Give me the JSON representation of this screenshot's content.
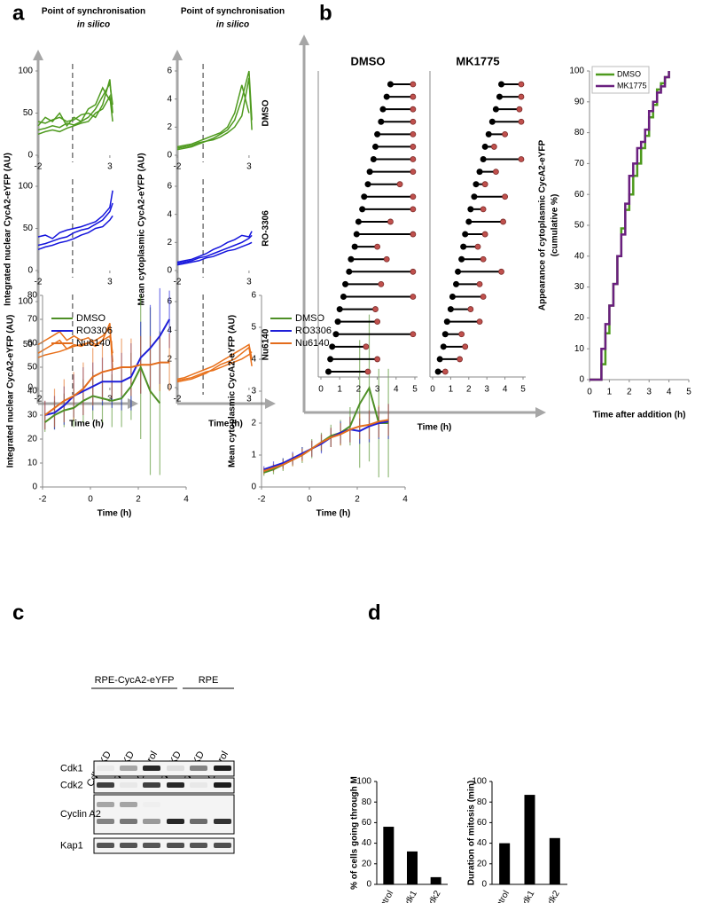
{
  "panel_labels": [
    "a",
    "b",
    "c",
    "d"
  ],
  "chart_data": [
    {
      "type": "small_multiples",
      "title": "Point of synchronisation",
      "subtitle": "in silico",
      "y_label": "Integrated nuclear CycA2-eYFP (AU)",
      "x_label": "Time (h)",
      "xlim": [
        -2,
        3.5
      ],
      "xticks": [
        -2,
        3
      ],
      "ylim": [
        0,
        100
      ],
      "yticks": [
        0,
        50,
        100
      ],
      "sync_x": 0.4,
      "panels": [
        {
          "color": "#4e9a1e",
          "x": [
            -2,
            -1.5,
            -1,
            -0.5,
            0,
            0.5,
            1,
            1.5,
            2,
            2.5,
            3,
            3.2
          ],
          "series": [
            {
              "values": [
                30,
                32,
                35,
                33,
                38,
                36,
                40,
                45,
                55,
                70,
                85,
                60
              ]
            },
            {
              "values": [
                40,
                38,
                42,
                45,
                40,
                42,
                48,
                50,
                45,
                60,
                90,
                50
              ]
            },
            {
              "values": [
                25,
                28,
                30,
                28,
                32,
                35,
                38,
                40,
                50,
                55,
                70,
                40
              ]
            },
            {
              "values": [
                35,
                45,
                40,
                50,
                35,
                45,
                40,
                55,
                60,
                80,
                65,
                null
              ]
            }
          ]
        },
        {
          "color": "#1414dc",
          "x": [
            -2,
            -1.5,
            -1,
            -0.5,
            0,
            0.5,
            1,
            1.5,
            2,
            2.5,
            3,
            3.2
          ],
          "series": [
            {
              "values": [
                30,
                32,
                35,
                38,
                40,
                45,
                48,
                50,
                55,
                60,
                70,
                80
              ]
            },
            {
              "values": [
                40,
                42,
                38,
                45,
                48,
                50,
                52,
                55,
                58,
                65,
                75,
                95
              ]
            },
            {
              "values": [
                25,
                28,
                30,
                33,
                35,
                38,
                42,
                45,
                50,
                52,
                60,
                65
              ]
            }
          ]
        },
        {
          "color": "#e8701a",
          "x": [
            -2,
            -1.5,
            -1,
            -0.5,
            0,
            0.5,
            1,
            1.5,
            2,
            2.5,
            3,
            3.2
          ],
          "series": [
            {
              "values": [
                40,
                45,
                50,
                55,
                45,
                50,
                48,
                52,
                55,
                60,
                70,
                30
              ]
            },
            {
              "values": [
                50,
                55,
                60,
                65,
                55,
                60,
                55,
                58,
                50,
                55,
                75,
                20
              ]
            },
            {
              "values": [
                35,
                38,
                40,
                42,
                45,
                48,
                50,
                52,
                48,
                55,
                60,
                40
              ]
            }
          ]
        }
      ]
    },
    {
      "type": "small_multiples",
      "title": "Point of synchronisation",
      "subtitle": "in silico",
      "y_label": "Mean cytoplasmic CycA2-eYFP (AU)",
      "x_label": "Time (h)",
      "xlim": [
        -2,
        3.5
      ],
      "xticks": [
        -2,
        3
      ],
      "ylim": [
        0,
        6
      ],
      "yticks": [
        0,
        2,
        4,
        6
      ],
      "sync_x": -0.2,
      "panels": [
        {
          "label": "DMSO",
          "color": "#4e9a1e",
          "x": [
            -2,
            -1.5,
            -1,
            -0.5,
            0,
            0.5,
            1,
            1.5,
            2,
            2.5,
            3,
            3.2
          ],
          "series": [
            {
              "values": [
                0.5,
                0.6,
                0.7,
                0.9,
                1.0,
                1.2,
                1.5,
                1.8,
                2.5,
                4.0,
                6.0,
                2.5
              ]
            },
            {
              "values": [
                0.6,
                0.7,
                0.8,
                1.0,
                1.2,
                1.4,
                1.6,
                2.0,
                3.0,
                5.0,
                3.0,
                null
              ]
            },
            {
              "values": [
                0.4,
                0.5,
                0.6,
                0.8,
                1.0,
                1.1,
                1.3,
                1.6,
                2.0,
                2.8,
                5.5,
                1.8
              ]
            }
          ]
        },
        {
          "label": "RO-3306",
          "color": "#1414dc",
          "x": [
            -2,
            -1.5,
            -1,
            -0.5,
            0,
            0.5,
            1,
            1.5,
            2,
            2.5,
            3,
            3.2
          ],
          "series": [
            {
              "values": [
                0.5,
                0.6,
                0.7,
                0.9,
                1.0,
                1.2,
                1.4,
                1.6,
                1.8,
                2.0,
                2.3,
                2.5
              ]
            },
            {
              "values": [
                0.6,
                0.7,
                0.8,
                1.0,
                1.2,
                1.5,
                1.7,
                2.0,
                2.2,
                2.5,
                2.4,
                2.8
              ]
            },
            {
              "values": [
                0.4,
                0.5,
                0.6,
                0.7,
                0.9,
                1.0,
                1.2,
                1.4,
                1.5,
                1.7,
                1.9,
                2.0
              ]
            }
          ]
        },
        {
          "label": "Nu6140",
          "color": "#e8701a",
          "x": [
            -2,
            -1.5,
            -1,
            -0.5,
            0,
            0.5,
            1,
            1.5,
            2,
            2.5,
            3,
            3.2
          ],
          "series": [
            {
              "values": [
                0.4,
                0.5,
                0.6,
                0.8,
                1.0,
                1.3,
                1.6,
                1.8,
                2.0,
                2.4,
                2.8,
                1.5
              ]
            },
            {
              "values": [
                0.6,
                0.7,
                0.9,
                1.1,
                1.3,
                1.5,
                1.8,
                2.1,
                2.4,
                2.7,
                3.0,
                2.0
              ]
            },
            {
              "values": [
                0.5,
                0.6,
                0.7,
                0.9,
                1.1,
                1.2,
                1.4,
                1.6,
                1.8,
                2.0,
                2.3,
                2.5
              ]
            }
          ]
        }
      ]
    },
    {
      "type": "line",
      "y_label": "Integrated nuclear CycA2-eYFP (AU)",
      "x_label": "Time (h)",
      "xlim": [
        -2,
        4
      ],
      "xticks": [
        -2,
        0,
        2,
        4
      ],
      "ylim": [
        0,
        80
      ],
      "yticks": [
        0,
        10,
        20,
        30,
        40,
        50,
        60,
        70,
        80
      ],
      "x": [
        -1.9,
        -1.5,
        -1.1,
        -0.7,
        -0.3,
        0.1,
        0.5,
        0.9,
        1.3,
        1.7,
        2.1,
        2.5,
        2.9,
        3.3
      ],
      "series": [
        {
          "name": "DMSO",
          "color": "#4e8f26",
          "values": [
            27,
            30,
            32,
            33,
            36,
            38,
            37,
            36,
            37,
            42,
            50,
            40,
            35,
            null
          ],
          "errors": [
            4,
            6,
            7,
            8,
            9,
            10,
            10,
            11,
            12,
            14,
            30,
            35,
            30,
            null
          ]
        },
        {
          "name": "RO3306",
          "color": "#1f1fd8",
          "values": [
            30,
            31,
            34,
            38,
            40,
            42,
            44,
            44,
            44,
            46,
            54,
            58,
            63,
            70
          ],
          "errors": [
            6,
            7,
            8,
            9,
            10,
            10,
            10,
            11,
            12,
            14,
            15,
            18,
            20,
            12
          ]
        },
        {
          "name": "Nu6140",
          "color": "#e36c1c",
          "values": [
            30,
            33,
            36,
            38,
            41,
            46,
            48,
            49,
            50,
            50,
            51,
            51,
            52,
            52
          ],
          "errors": [
            6,
            8,
            9,
            10,
            11,
            12,
            12,
            12,
            12,
            12,
            12,
            12,
            12,
            12
          ]
        }
      ]
    },
    {
      "type": "line",
      "y_label": "Mean cytoplasmic CycA2-eYFP (AU)",
      "x_label": "Time (h)",
      "xlim": [
        -2,
        4
      ],
      "xticks": [
        -2,
        0,
        2,
        4
      ],
      "ylim": [
        0,
        6
      ],
      "yticks": [
        0,
        1,
        2,
        3,
        4,
        5,
        6
      ],
      "x": [
        -1.9,
        -1.5,
        -1.1,
        -0.7,
        -0.3,
        0.1,
        0.5,
        0.9,
        1.3,
        1.7,
        2.1,
        2.5,
        2.9,
        3.3
      ],
      "series": [
        {
          "name": "DMSO",
          "color": "#4e8f26",
          "values": [
            0.45,
            0.55,
            0.7,
            0.85,
            1.0,
            1.2,
            1.4,
            1.6,
            1.7,
            1.9,
            2.6,
            3.1,
            2.0,
            2.0
          ],
          "errors": [
            0.1,
            0.15,
            0.2,
            0.2,
            0.25,
            0.3,
            0.3,
            0.35,
            0.4,
            0.6,
            2.0,
            2.3,
            1.7,
            1.7
          ]
        },
        {
          "name": "RO3306",
          "color": "#1f1fd8",
          "values": [
            0.55,
            0.65,
            0.75,
            0.9,
            1.05,
            1.2,
            1.35,
            1.55,
            1.7,
            1.8,
            1.75,
            1.9,
            2.0,
            2.05
          ],
          "errors": [
            0.1,
            0.15,
            0.15,
            0.2,
            0.2,
            0.25,
            0.3,
            0.3,
            0.35,
            0.4,
            0.4,
            0.5,
            0.5,
            0.55
          ]
        },
        {
          "name": "Nu6140",
          "color": "#e36c1c",
          "values": [
            0.5,
            0.6,
            0.7,
            0.85,
            1.0,
            1.2,
            1.4,
            1.55,
            1.65,
            1.8,
            1.9,
            1.95,
            2.05,
            2.1
          ],
          "errors": [
            0.1,
            0.12,
            0.15,
            0.2,
            0.2,
            0.25,
            0.25,
            0.3,
            0.35,
            0.4,
            0.4,
            0.45,
            0.5,
            0.5
          ]
        }
      ]
    },
    {
      "type": "lollipop",
      "title": "DMSO",
      "x_label": "Time (h)",
      "xlim": [
        0,
        5
      ],
      "xticks": [
        0,
        1,
        2,
        3,
        4,
        5
      ],
      "starts": [
        0.4,
        0.5,
        0.6,
        0.8,
        0.9,
        1.0,
        1.2,
        1.3,
        1.5,
        1.6,
        1.8,
        1.9,
        2.0,
        2.2,
        2.3,
        2.5,
        2.6,
        2.8,
        2.9,
        3.0,
        3.2,
        3.3,
        3.5,
        3.7
      ],
      "ends": [
        2.5,
        3.0,
        2.4,
        4.9,
        3.0,
        2.9,
        4.9,
        3.2,
        4.9,
        3.5,
        3.0,
        4.9,
        3.7,
        4.9,
        4.9,
        4.2,
        4.9,
        4.9,
        4.9,
        4.9,
        4.9,
        4.9,
        4.9,
        4.9
      ]
    },
    {
      "type": "lollipop",
      "title": "MK1775",
      "xlim": [
        0,
        5
      ],
      "xticks": [
        0,
        1,
        2,
        3,
        4,
        5
      ],
      "starts": [
        0.3,
        0.4,
        0.6,
        0.7,
        0.8,
        1.0,
        1.1,
        1.3,
        1.4,
        1.6,
        1.7,
        1.8,
        2.0,
        2.1,
        2.3,
        2.4,
        2.6,
        2.8,
        2.9,
        3.1,
        3.3,
        3.5,
        3.7,
        3.8
      ],
      "ends": [
        0.7,
        1.5,
        1.8,
        1.6,
        2.6,
        2.1,
        2.8,
        2.6,
        3.8,
        2.8,
        2.5,
        2.9,
        3.9,
        2.8,
        4.0,
        2.9,
        3.5,
        4.9,
        3.4,
        4.0,
        4.9,
        4.8,
        4.9,
        4.9
      ]
    },
    {
      "type": "step",
      "y_label": [
        "Appearance of cytoplasmic CycA2-eYFP",
        "(cumulative %)"
      ],
      "x_label": "Time after addition (h)",
      "xlim": [
        0,
        5
      ],
      "xticks": [
        0,
        1,
        2,
        3,
        4,
        5
      ],
      "ylim": [
        0,
        100
      ],
      "yticks": [
        0,
        10,
        20,
        30,
        40,
        50,
        60,
        70,
        80,
        90,
        100
      ],
      "x": [
        0,
        0.6,
        0.8,
        1.0,
        1.2,
        1.4,
        1.6,
        1.8,
        2.0,
        2.2,
        2.4,
        2.6,
        2.8,
        3.0,
        3.2,
        3.4,
        3.6,
        3.8,
        4.0
      ],
      "series": [
        {
          "name": "DMSO",
          "color": "#4e9a1e",
          "values": [
            0,
            5,
            15,
            24,
            31,
            40,
            49,
            55,
            60,
            66,
            70,
            75,
            79,
            85,
            89,
            94,
            96,
            98,
            100
          ]
        },
        {
          "name": "MK1775",
          "color": "#6a1f7f",
          "values": [
            0,
            10,
            18,
            24,
            31,
            40,
            47,
            57,
            66,
            70,
            75,
            77,
            81,
            87,
            90,
            93,
            95,
            98,
            100
          ]
        }
      ]
    },
    {
      "type": "bar",
      "y_label": "% of cells going through M",
      "categories": [
        "Control",
        "Cdk1",
        "Cdk2"
      ],
      "values": [
        56,
        32,
        7
      ],
      "color": "#000000",
      "ylim": [
        0,
        100
      ],
      "yticks": [
        0,
        20,
        40,
        60,
        80,
        100
      ]
    },
    {
      "type": "bar",
      "y_label": "Duration of mitosis (min)",
      "categories": [
        "Control",
        "Cdk1",
        "Cdk2"
      ],
      "values": [
        40,
        87,
        45
      ],
      "color": "#000000",
      "ylim": [
        0,
        100
      ],
      "yticks": [
        0,
        20,
        40,
        60,
        80,
        100
      ]
    }
  ],
  "blot": {
    "groups": [
      "RPE-CycA2-eYFP",
      "RPE"
    ],
    "lanes": [
      "Cdk1 KD",
      "Cdk2 KD",
      "Control",
      "Cdk1 KD",
      "Cdk2 KD",
      "Control"
    ],
    "rows": [
      "Cdk1",
      "Cdk2",
      "Cyclin A2",
      "Kap1"
    ]
  }
}
